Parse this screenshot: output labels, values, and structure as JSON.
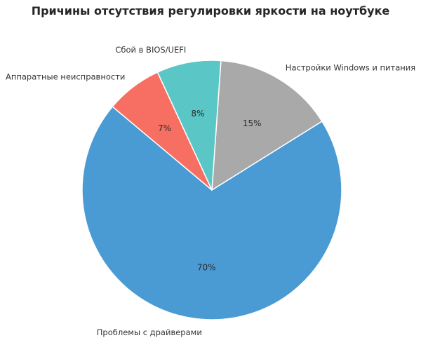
{
  "chart_data": {
    "type": "pie",
    "title": "Причины отсутствия регулировки яркости на ноутбуке",
    "categories": [
      "Проблемы с драйверами",
      "Настройки Windows и питания",
      "Сбой в BIOS/UEFI",
      "Аппаратные неисправности"
    ],
    "values": [
      70,
      15,
      8,
      7
    ],
    "value_labels": [
      "70%",
      "15%",
      "8%",
      "7%"
    ],
    "colors": [
      "#4a9bd4",
      "#a9a9a9",
      "#5bc6c6",
      "#f76e62"
    ],
    "start_angle": 140,
    "legend": "none"
  }
}
